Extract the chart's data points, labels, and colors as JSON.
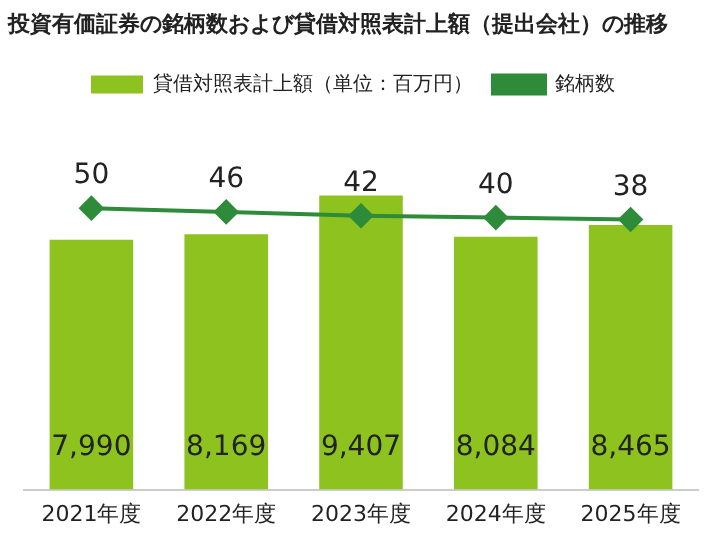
{
  "chart_data": {
    "type": "bar",
    "title": "投資有価証券の銘柄数および貸借対照表計上額（提出会社）の推移",
    "categories": [
      "2021年度",
      "2022年度",
      "2023年度",
      "2024年度",
      "2025年度"
    ],
    "series": [
      {
        "name": "貸借対照表計上額（単位：百万円）",
        "type": "bar",
        "color": "#8dc21f",
        "values": [
          7990,
          8169,
          9407,
          8084,
          8465
        ],
        "value_labels": [
          "7,990",
          "8,169",
          "9,407",
          "8,084",
          "8,465"
        ]
      },
      {
        "name": "銘柄数",
        "type": "line",
        "axis": "y2",
        "color": "#2e8b3a",
        "values": [
          50,
          46,
          42,
          40,
          38
        ]
      }
    ],
    "tick_labels": "x",
    "grid": false,
    "legend": "top",
    "marker": "diamond",
    "line_style": "solid",
    "data_labels": true
  }
}
